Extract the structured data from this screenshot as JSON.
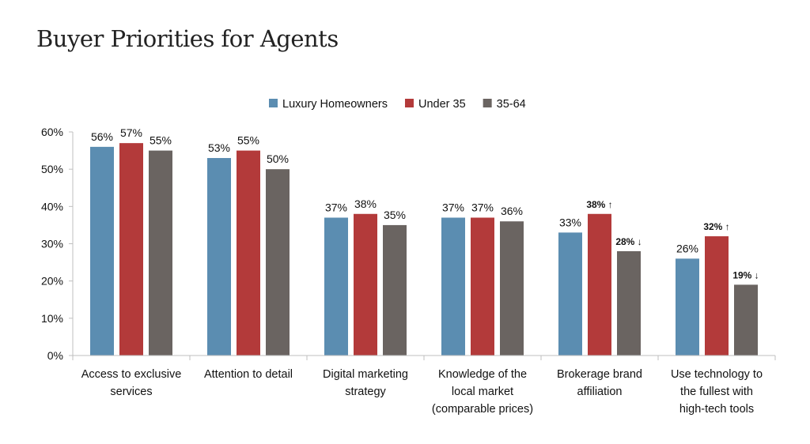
{
  "title": "Buyer Priorities for Agents",
  "colors": {
    "luxury": "#5b8db1",
    "under35": "#b33a3a",
    "mid": "#6a6461",
    "axis": "#bfbfbf",
    "up": "#3b4f9c",
    "down": "#d23a35"
  },
  "chart_data": {
    "type": "bar",
    "title": "Buyer Priorities for Agents",
    "categories": [
      [
        "Access to exclusive",
        "services"
      ],
      [
        "Attention to detail"
      ],
      [
        "Digital marketing",
        "strategy"
      ],
      [
        "Knowledge of the",
        "local market",
        "(comparable prices)"
      ],
      [
        "Brokerage brand",
        "affiliation"
      ],
      [
        "Use technology to",
        "the fullest with",
        "high-tech tools"
      ]
    ],
    "series": [
      {
        "name": "Luxury Homeowners",
        "color_key": "luxury",
        "values": [
          56,
          53,
          37,
          37,
          33,
          26
        ],
        "labels": [
          "56%",
          "53%",
          "37%",
          "37%",
          "33%",
          "26%"
        ],
        "label_style": [
          "normal",
          "normal",
          "normal",
          "normal",
          "normal",
          "normal"
        ]
      },
      {
        "name": "Under 35",
        "color_key": "under35",
        "values": [
          57,
          55,
          38,
          37,
          38,
          32
        ],
        "labels": [
          "57%",
          "55%",
          "38%",
          "37%",
          "38% ↑",
          "32% ↑"
        ],
        "label_style": [
          "normal",
          "normal",
          "normal",
          "normal",
          "up",
          "up"
        ]
      },
      {
        "name": "35-64",
        "color_key": "mid",
        "values": [
          55,
          50,
          35,
          36,
          28,
          19
        ],
        "labels": [
          "55%",
          "50%",
          "35%",
          "36%",
          "28% ↓",
          "19% ↓"
        ],
        "label_style": [
          "normal",
          "normal",
          "normal",
          "normal",
          "down",
          "down"
        ]
      }
    ],
    "ylim": [
      0,
      60
    ],
    "yticks": [
      "0%",
      "10%",
      "20%",
      "30%",
      "40%",
      "50%",
      "60%"
    ],
    "grid": false,
    "legend": "top-center"
  }
}
